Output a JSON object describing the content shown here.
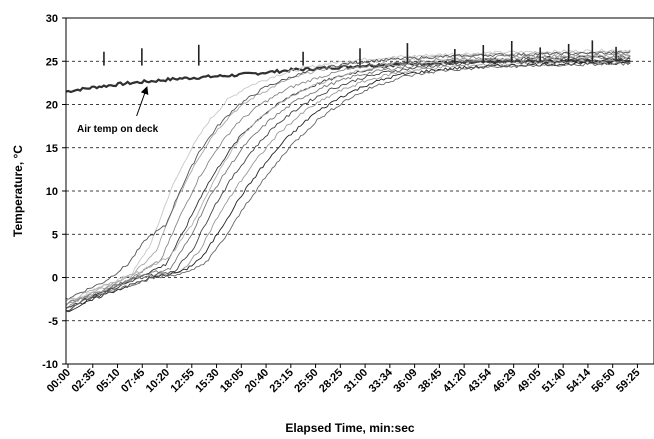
{
  "chart_data": {
    "type": "line",
    "title": "",
    "xlabel": "Elapsed Time, min:sec",
    "ylabel": "Temperature, °C",
    "ylim": [
      -10,
      30
    ],
    "yticks": [
      -10,
      -5,
      0,
      5,
      10,
      15,
      20,
      25,
      30
    ],
    "x_tick_labels": [
      "00:00",
      "02:35",
      "05:10",
      "07:45",
      "10:20",
      "12:55",
      "15:30",
      "18:05",
      "20:40",
      "23:15",
      "25:50",
      "28:25",
      "31:00",
      "33:34",
      "36:09",
      "38:45",
      "41:20",
      "43:54",
      "46:29",
      "49:05",
      "51:40",
      "54:14",
      "56:50",
      "59:25"
    ],
    "grid": "horizontal-dashed",
    "legend": "none",
    "annotation": {
      "text": "Air temp on deck",
      "target_series": "air-temp",
      "x_minutes": 8.5,
      "y_value": 22.6
    },
    "series": [
      {
        "id": "air-temp",
        "role": "air",
        "color": "#303030",
        "x_minutes": [
          0,
          3,
          6,
          9,
          12,
          15,
          18,
          21,
          24,
          27,
          30,
          33,
          36,
          40,
          45,
          50,
          55,
          59.5
        ],
        "y": [
          21.5,
          22.0,
          22.4,
          22.7,
          23.0,
          23.2,
          23.4,
          23.7,
          24.0,
          24.2,
          24.4,
          24.6,
          24.7,
          24.8,
          24.9,
          25.0,
          25.0,
          25.1
        ]
      },
      {
        "id": "s1",
        "role": "probe",
        "color": "#c8c8c8",
        "x_minutes": [
          0,
          4,
          7,
          9,
          11,
          13,
          15,
          17,
          19,
          22,
          25,
          28,
          31,
          35,
          40,
          45,
          50,
          55,
          59.5
        ],
        "y": [
          -3.0,
          -1.0,
          0.5,
          4.0,
          10.0,
          14.5,
          18.0,
          20.5,
          22.0,
          23.3,
          24.2,
          24.8,
          25.2,
          25.5,
          25.8,
          26.0,
          26.1,
          26.2,
          26.3
        ]
      },
      {
        "id": "s2",
        "role": "probe",
        "color": "#a8a8a8",
        "x_minutes": [
          0,
          4,
          7,
          9.5,
          11.5,
          13.5,
          15.5,
          17.5,
          20,
          23,
          26,
          29,
          32,
          36,
          41,
          46,
          51,
          56,
          59.5
        ],
        "y": [
          -3.2,
          -1.2,
          0.3,
          3.0,
          8.5,
          13.0,
          16.5,
          19.0,
          21.0,
          22.7,
          23.8,
          24.5,
          25.0,
          25.3,
          25.6,
          25.8,
          25.9,
          26.0,
          26.1
        ]
      },
      {
        "id": "s3",
        "role": "probe",
        "color": "#555555",
        "x_minutes": [
          0,
          4,
          6.5,
          8.5,
          10.5,
          12,
          14,
          16,
          18,
          21,
          24,
          27,
          30,
          34,
          39,
          44,
          49,
          54,
          59.5
        ],
        "y": [
          -2.5,
          -0.5,
          1.5,
          4.5,
          6.0,
          10.0,
          14.5,
          17.5,
          19.8,
          22.0,
          23.3,
          24.2,
          24.8,
          25.2,
          25.5,
          25.7,
          25.8,
          25.9,
          26.0
        ]
      },
      {
        "id": "s4",
        "role": "probe",
        "color": "#888888",
        "x_minutes": [
          0,
          4,
          7,
          10,
          12,
          14,
          16,
          18,
          20.5,
          23.5,
          26.5,
          29.5,
          32.5,
          36.5,
          41,
          46,
          51,
          56,
          59.5
        ],
        "y": [
          -3.5,
          -1.5,
          0.0,
          2.0,
          7.0,
          11.5,
          15.0,
          17.8,
          20.0,
          21.9,
          23.1,
          24.0,
          24.6,
          25.0,
          25.3,
          25.5,
          25.6,
          25.7,
          25.8
        ]
      },
      {
        "id": "s5",
        "role": "probe",
        "color": "#333333",
        "x_minutes": [
          0,
          4,
          7.5,
          10.5,
          12.5,
          14.5,
          16.5,
          18.5,
          21,
          24,
          27,
          30,
          33,
          37,
          42,
          47,
          52,
          57,
          59.5
        ],
        "y": [
          -3.8,
          -1.8,
          0.0,
          1.5,
          5.5,
          10.0,
          13.5,
          16.5,
          19.0,
          21.2,
          22.6,
          23.6,
          24.3,
          24.8,
          25.1,
          25.3,
          25.4,
          25.5,
          25.5
        ]
      },
      {
        "id": "s6",
        "role": "probe",
        "color": "#777777",
        "x_minutes": [
          0,
          4,
          7.5,
          11,
          13,
          15,
          17,
          19,
          21.5,
          24.5,
          27.5,
          30.5,
          33.5,
          37.5,
          42.5,
          47.5,
          52.5,
          57,
          59.5
        ],
        "y": [
          -3.0,
          -1.5,
          0.2,
          1.0,
          4.5,
          9.0,
          12.5,
          15.5,
          18.2,
          20.6,
          22.2,
          23.3,
          24.0,
          24.6,
          25.0,
          25.2,
          25.3,
          25.4,
          25.4
        ]
      },
      {
        "id": "s7",
        "role": "probe",
        "color": "#444444",
        "x_minutes": [
          0,
          4,
          8,
          11.5,
          13.5,
          15.5,
          17.5,
          19.5,
          22,
          25,
          28,
          31,
          34,
          38,
          43,
          48,
          53,
          57,
          59.5
        ],
        "y": [
          -3.5,
          -1.6,
          0.0,
          0.8,
          3.5,
          8.0,
          11.5,
          14.5,
          17.5,
          20.0,
          21.8,
          23.0,
          23.8,
          24.4,
          24.8,
          25.0,
          25.1,
          25.2,
          25.2
        ]
      },
      {
        "id": "s8",
        "role": "probe",
        "color": "#999999",
        "x_minutes": [
          0,
          4,
          8,
          12,
          14,
          16,
          18,
          20,
          22.5,
          25.5,
          28.5,
          31.5,
          34.5,
          38.5,
          43.5,
          48.5,
          53.5,
          57.5,
          59.5
        ],
        "y": [
          -3.2,
          -1.4,
          0.1,
          0.5,
          3.0,
          7.0,
          10.5,
          13.5,
          16.8,
          19.5,
          21.4,
          22.7,
          23.6,
          24.2,
          24.6,
          24.8,
          24.9,
          25.0,
          25.0
        ]
      },
      {
        "id": "s9",
        "role": "probe",
        "color": "#222222",
        "x_minutes": [
          0,
          4,
          8.5,
          12.5,
          14.5,
          16.5,
          18.5,
          20.5,
          23,
          26,
          29,
          32,
          35,
          39,
          44,
          49,
          54,
          58,
          59.5
        ],
        "y": [
          -4.0,
          -2.0,
          -0.2,
          0.8,
          2.5,
          6.0,
          9.5,
          12.5,
          15.8,
          18.8,
          20.9,
          22.4,
          23.4,
          24.0,
          24.4,
          24.6,
          24.7,
          24.8,
          24.8
        ]
      },
      {
        "id": "s10",
        "role": "probe",
        "color": "#666666",
        "x_minutes": [
          0,
          4,
          9,
          13,
          15,
          17,
          19,
          21,
          23.5,
          26.5,
          29.5,
          32.5,
          35.5,
          39.5,
          44.5,
          49.5,
          54.5,
          58,
          59.5
        ],
        "y": [
          -3.6,
          -1.8,
          -0.1,
          0.6,
          2.0,
          5.0,
          8.5,
          11.5,
          15.0,
          18.2,
          20.5,
          22.1,
          23.2,
          23.9,
          24.3,
          24.5,
          24.6,
          24.7,
          24.7
        ]
      },
      {
        "id": "s11",
        "role": "probe",
        "color": "#b0b0b0",
        "x_minutes": [
          0,
          4,
          8,
          11,
          13.5,
          15.5,
          17.5,
          19.5,
          22,
          25,
          28,
          31,
          34,
          38,
          43,
          48,
          53,
          57.5,
          59.5
        ],
        "y": [
          -2.8,
          -1.0,
          0.8,
          2.5,
          6.5,
          11.0,
          14.8,
          17.5,
          19.8,
          21.7,
          23.0,
          23.9,
          24.5,
          24.9,
          25.2,
          25.4,
          25.5,
          25.6,
          25.6
        ]
      }
    ]
  }
}
